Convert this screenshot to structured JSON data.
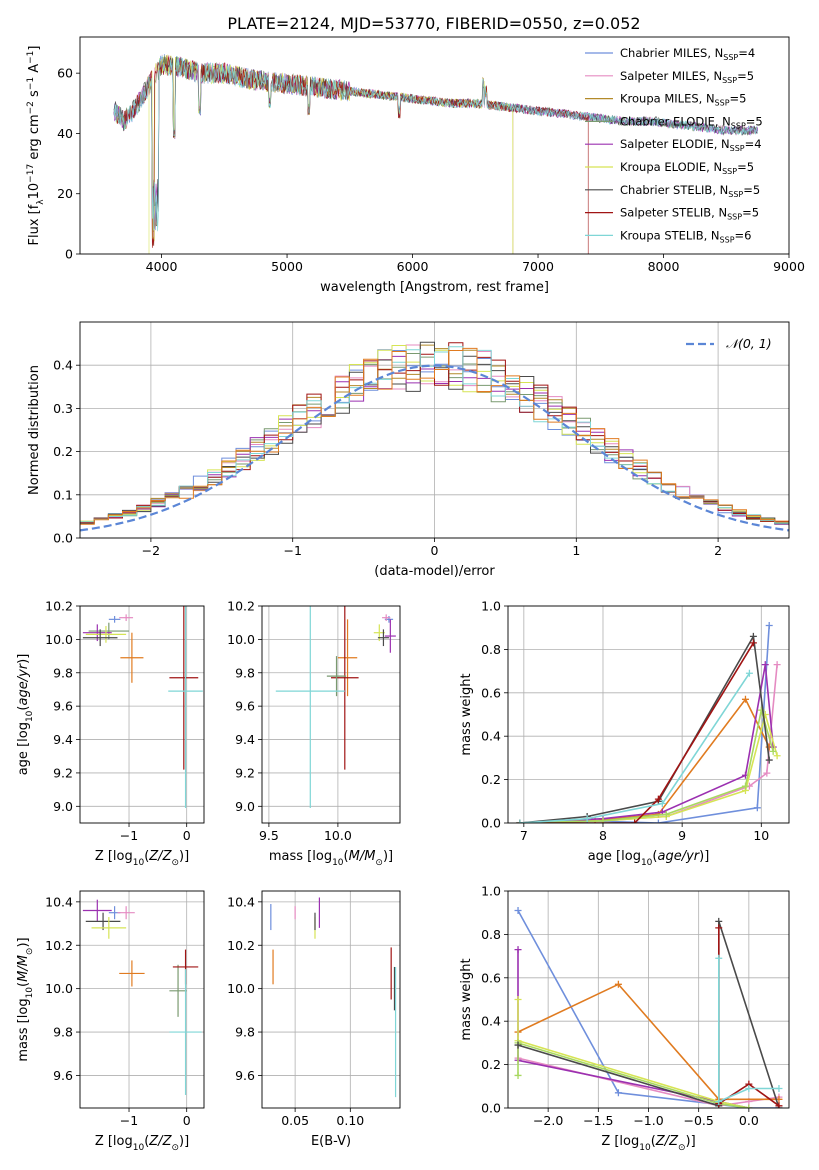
{
  "figure_title": "PLATE=2124, MJD=53770, FIBERID=0550, z=0.052",
  "colors": {
    "Chabrier MILES": "#6f8fdc",
    "Salpeter MILES": "#e58bc2",
    "Kroupa MILES": "#b38a2a",
    "Chabrier ELODIE": "#7a9a70",
    "Salpeter ELODIE": "#9b30b0",
    "Kroupa ELODIE": "#d6e455",
    "Chabrier STELIB": "#4a4a4a",
    "Salpeter STELIB": "#a01414",
    "Kroupa STELIB": "#7fd6d6",
    "orange": "#e07b20",
    "green": "#a8d860",
    "gaussian": "#5b86d6"
  },
  "chart_data": [
    {
      "id": "spectrum",
      "type": "line",
      "title": "PLATE=2124, MJD=53770, FIBERID=0550, z=0.052",
      "xlabel": "wavelength [Angstrom, rest frame]",
      "ylabel": "Flux [f_λ 10^-17 erg cm^-2 s^-1 A^-1]",
      "xlim": [
        3350,
        9000
      ],
      "ylim": [
        0,
        72
      ],
      "xticks": [
        4000,
        5000,
        6000,
        7000,
        8000,
        9000
      ],
      "yticks": [
        0,
        20,
        40,
        60
      ],
      "legend_position": "right",
      "legend": [
        {
          "label": "Chabrier MILES, N",
          "sub": "SSP",
          "tail": "=4"
        },
        {
          "label": "Salpeter MILES, N",
          "sub": "SSP",
          "tail": "=5"
        },
        {
          "label": "Kroupa MILES, N",
          "sub": "SSP",
          "tail": "=5"
        },
        {
          "label": "Chabrier ELODIE, N",
          "sub": "SSP",
          "tail": "=5"
        },
        {
          "label": "Salpeter ELODIE, N",
          "sub": "SSP",
          "tail": "=4"
        },
        {
          "label": "Kroupa ELODIE, N",
          "sub": "SSP",
          "tail": "=5"
        },
        {
          "label": "Chabrier STELIB, N",
          "sub": "SSP",
          "tail": "=5"
        },
        {
          "label": "Salpeter STELIB, N",
          "sub": "SSP",
          "tail": "=5"
        },
        {
          "label": "Kroupa STELIB, N",
          "sub": "SSP",
          "tail": "=6"
        }
      ],
      "continuum": [
        [
          3620,
          48
        ],
        [
          3700,
          44
        ],
        [
          3800,
          49
        ],
        [
          3900,
          56
        ],
        [
          4000,
          63
        ],
        [
          4150,
          62
        ],
        [
          4300,
          60
        ],
        [
          4500,
          60
        ],
        [
          4700,
          58
        ],
        [
          4900,
          57
        ],
        [
          5100,
          56
        ],
        [
          5300,
          55
        ],
        [
          5500,
          54
        ],
        [
          5700,
          53
        ],
        [
          5900,
          52
        ],
        [
          6100,
          51
        ],
        [
          6300,
          50
        ],
        [
          6500,
          50
        ],
        [
          6700,
          49
        ],
        [
          6900,
          48
        ],
        [
          7100,
          47
        ],
        [
          7300,
          46
        ],
        [
          7500,
          45
        ],
        [
          7700,
          44
        ],
        [
          7900,
          44
        ],
        [
          8100,
          43
        ],
        [
          8300,
          42
        ],
        [
          8500,
          41
        ],
        [
          8750,
          41
        ]
      ],
      "features": [
        [
          3934,
          4
        ],
        [
          3968,
          0
        ],
        [
          4101,
          40
        ],
        [
          4304,
          48
        ],
        [
          4861,
          50
        ],
        [
          5175,
          48
        ],
        [
          5892,
          47
        ],
        [
          6563,
          57
        ],
        [
          6583,
          54
        ],
        [
          7400,
          0
        ],
        [
          6790,
          0
        ]
      ],
      "model_ranges": [
        [
          3620,
          8750
        ],
        [
          3620,
          8750
        ],
        [
          3620,
          6800
        ],
        [
          3620,
          8750
        ],
        [
          3620,
          8750
        ],
        [
          3900,
          6800
        ],
        [
          3620,
          8750
        ],
        [
          3620,
          7400
        ],
        [
          3620,
          8750
        ]
      ]
    },
    {
      "id": "residuals",
      "type": "line",
      "xlabel": "(data-model)/error",
      "ylabel": "Normed distribution",
      "xlim": [
        -2.5,
        2.5
      ],
      "ylim": [
        0,
        0.5
      ],
      "xticks": [
        -2,
        -1,
        0,
        1,
        2
      ],
      "yticks": [
        0.0,
        0.1,
        0.2,
        0.3,
        0.4
      ],
      "legend": "𝒩(0, 1)",
      "gaussian": {
        "mu": 0,
        "sigma": 1
      }
    },
    {
      "id": "age_vs_Z",
      "type": "scatter",
      "xlabel": "Z [log10(Z/Z⊙)]",
      "ylabel": "age [log10(age/yr)]",
      "xlim": [
        -1.85,
        0.3
      ],
      "ylim": [
        8.9,
        10.2
      ],
      "xticks": [
        -1,
        0
      ],
      "yticks": [
        9.0,
        9.2,
        9.4,
        9.6,
        9.8,
        10.0,
        10.2
      ],
      "points": [
        {
          "model": "Chabrier MILES",
          "x": -1.25,
          "y": 10.12,
          "xe": 0.1,
          "ye": 0.02
        },
        {
          "model": "Salpeter MILES",
          "x": -1.05,
          "y": 10.13,
          "xe": 0.12,
          "ye": 0.02
        },
        {
          "model": "orange",
          "x": -0.95,
          "y": 9.89,
          "xe": 0.2,
          "ye": 0.15
        },
        {
          "model": "Chabrier ELODIE",
          "x": -1.35,
          "y": 10.05,
          "xe": 0.35,
          "ye": 0.05
        },
        {
          "model": "Salpeter ELODIE",
          "x": -1.55,
          "y": 10.04,
          "xe": 0.25,
          "ye": 0.05
        },
        {
          "model": "Kroupa ELODIE",
          "x": -1.4,
          "y": 10.03,
          "xe": 0.35,
          "ye": 0.05
        },
        {
          "model": "Chabrier STELIB",
          "x": -1.5,
          "y": 10.01,
          "xe": 0.3,
          "ye": 0.05
        },
        {
          "model": "Salpeter STELIB",
          "x": -0.05,
          "y": 9.77,
          "xe": 0.25,
          "ye": 0.55
        },
        {
          "model": "Kroupa STELIB",
          "x": -0.02,
          "y": 9.69,
          "xe": 0.3,
          "ye": 0.7
        }
      ]
    },
    {
      "id": "age_vs_mass",
      "type": "scatter",
      "xlabel": "mass [log10(M/M⊙)]",
      "ylabel": "",
      "xlim": [
        9.45,
        10.45
      ],
      "ylim": [
        8.9,
        10.2
      ],
      "xticks": [
        9.5,
        10.0
      ],
      "yticks": [
        9.0,
        9.2,
        9.4,
        9.6,
        9.8,
        10.0,
        10.2
      ],
      "points": [
        {
          "model": "Chabrier MILES",
          "x": 10.37,
          "y": 10.12,
          "xe": 0.03,
          "ye": 0.02
        },
        {
          "model": "Salpeter MILES",
          "x": 10.35,
          "y": 10.13,
          "xe": 0.03,
          "ye": 0.02
        },
        {
          "model": "orange",
          "x": 10.07,
          "y": 9.89,
          "xe": 0.07,
          "ye": 0.23
        },
        {
          "model": "Salpeter ELODIE",
          "x": 10.38,
          "y": 10.02,
          "xe": 0.04,
          "ye": 0.1
        },
        {
          "model": "Kroupa ELODIE",
          "x": 10.3,
          "y": 10.04,
          "xe": 0.04,
          "ye": 0.05
        },
        {
          "model": "Chabrier STELIB",
          "x": 10.33,
          "y": 10.01,
          "xe": 0.04,
          "ye": 0.05
        },
        {
          "model": "Salpeter STELIB",
          "x": 10.05,
          "y": 9.77,
          "xe": 0.1,
          "ye": 0.55
        },
        {
          "model": "Chabrier ELODIE",
          "x": 9.99,
          "y": 9.78,
          "xe": 0.07,
          "ye": 0.12
        },
        {
          "model": "Kroupa STELIB",
          "x": 9.8,
          "y": 9.69,
          "xe": 0.25,
          "ye": 0.7
        }
      ]
    },
    {
      "id": "massweight_vs_age",
      "type": "line",
      "xlabel": "age [log10(age/yr)]",
      "ylabel": "mass weight",
      "xlim": [
        6.8,
        10.35
      ],
      "ylim": [
        0.0,
        1.0
      ],
      "xticks": [
        7,
        8,
        9,
        10
      ],
      "yticks": [
        0.0,
        0.2,
        0.4,
        0.6,
        0.8,
        1.0
      ],
      "series": [
        {
          "model": "Chabrier MILES",
          "x": [
            6.95,
            7.8,
            8.7,
            9.95,
            10.1
          ],
          "y": [
            0.0,
            0.01,
            0.0,
            0.07,
            0.91
          ]
        },
        {
          "model": "Salpeter MILES",
          "x": [
            6.95,
            8.0,
            8.8,
            9.85,
            10.07,
            10.2
          ],
          "y": [
            0.0,
            0.01,
            0.03,
            0.17,
            0.23,
            0.73
          ]
        },
        {
          "model": "orange",
          "x": [
            6.95,
            7.9,
            8.7,
            9.8,
            10.1
          ],
          "y": [
            0.0,
            0.01,
            0.04,
            0.57,
            0.35
          ]
        },
        {
          "model": "Salpeter ELODIE",
          "x": [
            6.95,
            8.0,
            8.75,
            9.8,
            10.05,
            10.15
          ],
          "y": [
            0.0,
            0.02,
            0.05,
            0.22,
            0.73,
            0.35
          ]
        },
        {
          "model": "Kroupa ELODIE",
          "x": [
            6.95,
            8.0,
            8.8,
            9.8,
            10.05,
            10.2
          ],
          "y": [
            0.0,
            0.01,
            0.03,
            0.15,
            0.5,
            0.31
          ]
        },
        {
          "model": "green",
          "x": [
            6.95,
            8.0,
            8.8,
            9.8,
            10.0,
            10.15
          ],
          "y": [
            0.0,
            0.01,
            0.04,
            0.17,
            0.52,
            0.33
          ]
        },
        {
          "model": "Chabrier STELIB",
          "x": [
            6.95,
            7.8,
            8.7,
            9.9,
            10.1
          ],
          "y": [
            0.0,
            0.03,
            0.1,
            0.86,
            0.29
          ]
        },
        {
          "model": "Salpeter STELIB",
          "x": [
            6.95,
            8.4,
            8.7,
            9.9
          ],
          "y": [
            0.0,
            0.0,
            0.11,
            0.83
          ]
        },
        {
          "model": "Kroupa STELIB",
          "x": [
            6.95,
            7.8,
            8.75,
            9.85
          ],
          "y": [
            0.0,
            0.02,
            0.09,
            0.69
          ]
        }
      ]
    },
    {
      "id": "mass_vs_Z",
      "type": "scatter",
      "xlabel": "Z [log10(Z/Z⊙)]",
      "ylabel": "mass [log10(M/M⊙)]",
      "xlim": [
        -1.85,
        0.3
      ],
      "ylim": [
        9.45,
        10.45
      ],
      "xticks": [
        -1,
        0
      ],
      "yticks": [
        9.6,
        9.8,
        10.0,
        10.2,
        10.4
      ],
      "points": [
        {
          "model": "Chabrier MILES",
          "x": -1.25,
          "y": 10.35,
          "xe": 0.1,
          "ye": 0.03
        },
        {
          "model": "Salpeter MILES",
          "x": -1.05,
          "y": 10.35,
          "xe": 0.15,
          "ye": 0.03
        },
        {
          "model": "orange",
          "x": -0.95,
          "y": 10.07,
          "xe": 0.22,
          "ye": 0.06
        },
        {
          "model": "Salpeter ELODIE",
          "x": -1.55,
          "y": 10.36,
          "xe": 0.25,
          "ye": 0.05
        },
        {
          "model": "Chabrier STELIB",
          "x": -1.45,
          "y": 10.31,
          "xe": 0.3,
          "ye": 0.04
        },
        {
          "model": "Kroupa ELODIE",
          "x": -1.35,
          "y": 10.28,
          "xe": 0.3,
          "ye": 0.05
        },
        {
          "model": "Chabrier ELODIE",
          "x": -0.15,
          "y": 9.99,
          "xe": 0.15,
          "ye": 0.12
        },
        {
          "model": "Salpeter STELIB",
          "x": -0.02,
          "y": 10.1,
          "xe": 0.22,
          "ye": 0.08
        },
        {
          "model": "Kroupa STELIB",
          "x": -0.02,
          "y": 9.8,
          "xe": 0.28,
          "ye": 0.29
        }
      ]
    },
    {
      "id": "mass_vs_ebv",
      "type": "scatter",
      "xlabel": "E(B-V)",
      "ylabel": "",
      "xlim": [
        0.02,
        0.145
      ],
      "ylim": [
        9.45,
        10.45
      ],
      "xticks": [
        0.05,
        0.1
      ],
      "xtick_labels": [
        "0.05",
        "0.10"
      ],
      "yticks": [
        9.6,
        9.8,
        10.0,
        10.2,
        10.4
      ],
      "points": [
        {
          "model": "Chabrier MILES",
          "x": 0.028,
          "y": 10.33,
          "xe": 0.0,
          "ye": 0.06
        },
        {
          "model": "orange",
          "x": 0.03,
          "y": 10.1,
          "xe": 0.0,
          "ye": 0.08
        },
        {
          "model": "Salpeter MILES",
          "x": 0.05,
          "y": 10.35,
          "xe": 0.0,
          "ye": 0.03
        },
        {
          "model": "Kroupa ELODIE",
          "x": 0.068,
          "y": 10.28,
          "xe": 0.0,
          "ye": 0.05
        },
        {
          "model": "Salpeter ELODIE",
          "x": 0.072,
          "y": 10.35,
          "xe": 0.0,
          "ye": 0.07
        },
        {
          "model": "Chabrier STELIB",
          "x": 0.068,
          "y": 10.31,
          "xe": 0.0,
          "ye": 0.04
        },
        {
          "model": "Salpeter STELIB",
          "x": 0.137,
          "y": 10.07,
          "xe": 0.0,
          "ye": 0.12
        },
        {
          "model": "Chabrier STELIB",
          "x": 0.14,
          "y": 10.0,
          "xe": 0.0,
          "ye": 0.1
        },
        {
          "model": "Kroupa STELIB",
          "x": 0.141,
          "y": 9.8,
          "xe": 0.0,
          "ye": 0.3
        }
      ]
    },
    {
      "id": "massweight_vs_Z",
      "type": "line",
      "xlabel": "Z [log10(Z/Z⊙)]",
      "ylabel": "mass weight",
      "xlim": [
        -2.4,
        0.4
      ],
      "ylim": [
        0.0,
        1.0
      ],
      "xticks": [
        -2.0,
        -1.5,
        -1.0,
        -0.5,
        0.0
      ],
      "yticks": [
        0.0,
        0.2,
        0.4,
        0.6,
        0.8,
        1.0
      ],
      "series": [
        {
          "model": "Chabrier MILES",
          "x": [
            -2.3,
            -1.3,
            0.0,
            0.3
          ],
          "y": [
            0.91,
            0.07,
            0.0,
            0.0
          ]
        },
        {
          "model": "Salpeter MILES",
          "x": [
            -2.3,
            -0.3,
            0.0,
            0.3
          ],
          "y": [
            0.23,
            0.01,
            0.03,
            0.05
          ]
        },
        {
          "model": "orange",
          "x": [
            -2.3,
            -1.3,
            -0.3,
            0.3
          ],
          "y": [
            0.35,
            0.57,
            0.04,
            0.04
          ]
        },
        {
          "model": "Salpeter ELODIE",
          "x": [
            -2.3,
            -2.3,
            -0.3,
            0.0
          ],
          "y": [
            0.73,
            0.22,
            0.03,
            0.0
          ]
        },
        {
          "model": "Kroupa ELODIE",
          "x": [
            -2.3,
            -2.3,
            -0.3,
            0.0
          ],
          "y": [
            0.5,
            0.31,
            0.03,
            0.0
          ]
        },
        {
          "model": "green",
          "x": [
            -2.3,
            -2.3,
            -0.3,
            0.0
          ],
          "y": [
            0.15,
            0.3,
            0.02,
            0.0
          ]
        },
        {
          "model": "Chabrier STELIB",
          "x": [
            -2.3,
            -0.3,
            -0.3,
            0.3
          ],
          "y": [
            0.29,
            0.01,
            0.86,
            0.0
          ]
        },
        {
          "model": "Salpeter STELIB",
          "x": [
            -0.3,
            -0.3,
            0.0,
            0.3
          ],
          "y": [
            0.83,
            0.02,
            0.11,
            0.01
          ]
        },
        {
          "model": "Kroupa STELIB",
          "x": [
            -0.3,
            -0.3,
            0.0,
            0.3
          ],
          "y": [
            0.69,
            0.03,
            0.09,
            0.09
          ]
        }
      ]
    }
  ]
}
